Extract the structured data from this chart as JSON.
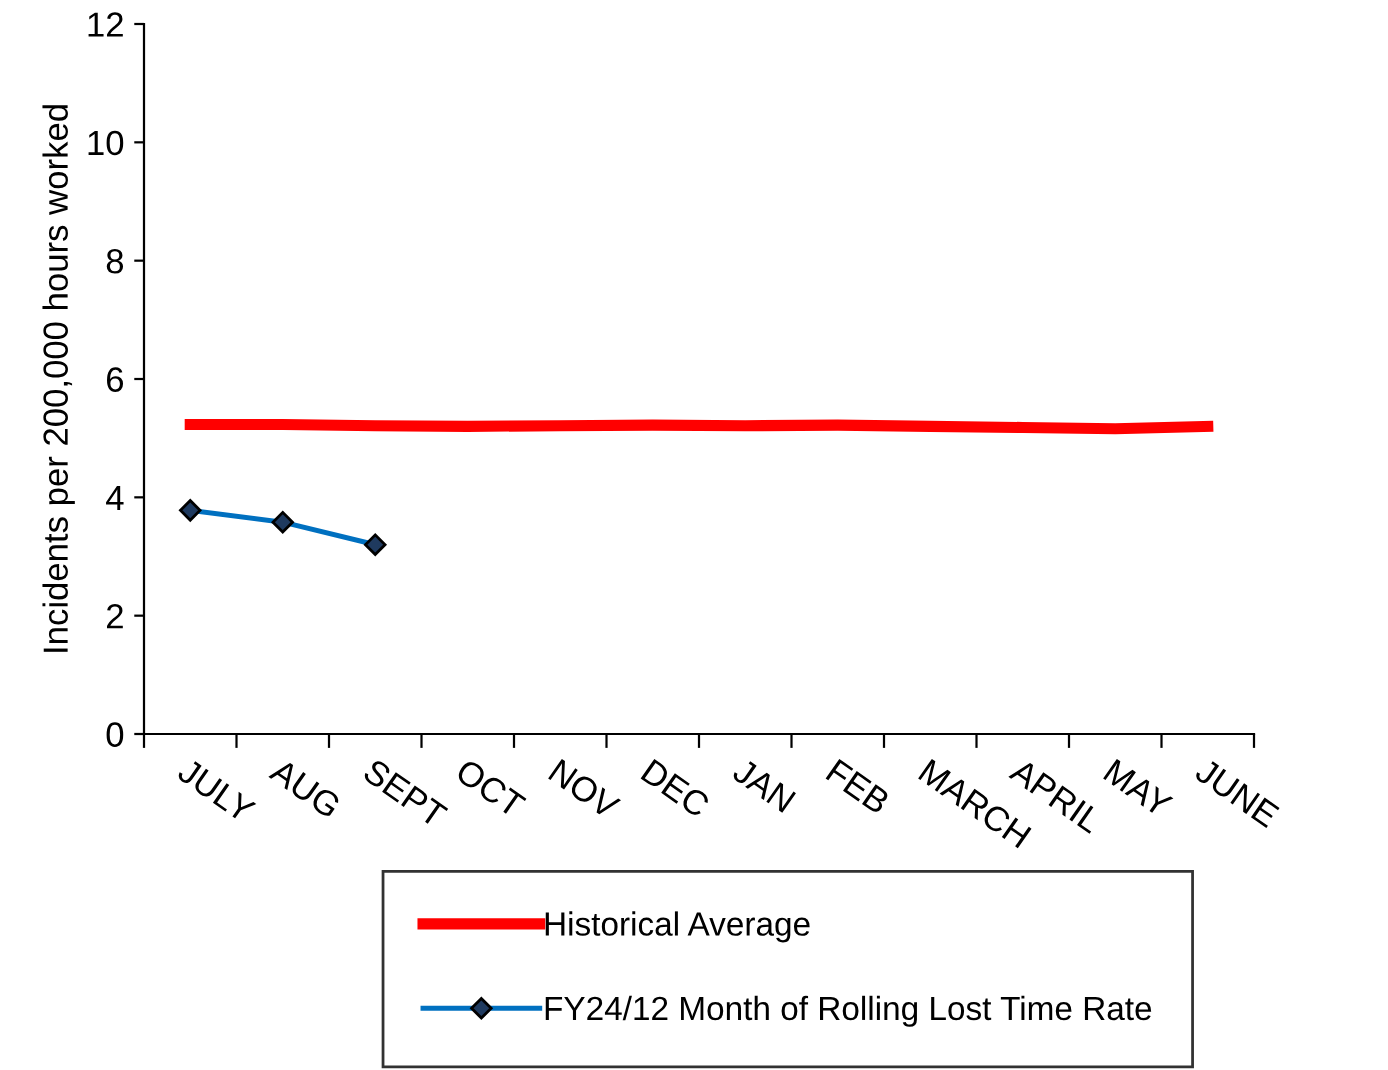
{
  "chart_data": {
    "type": "line",
    "ylabel": "Incidents per 200,000 hours worked",
    "categories": [
      "JULY",
      "AUG",
      "SEPT",
      "OCT",
      "NOV",
      "DEC",
      "JAN",
      "FEB",
      "MARCH",
      "APRIL",
      "MAY",
      "JUNE"
    ],
    "series": [
      {
        "name": "Historical Average",
        "color": "#ff0000",
        "marker": "none",
        "values": [
          5.23,
          5.23,
          5.21,
          5.2,
          5.21,
          5.22,
          5.21,
          5.22,
          5.2,
          5.18,
          5.16,
          5.2
        ]
      },
      {
        "name": "FY24/12 Month of Rolling Lost Time Rate",
        "color": "#0070c0",
        "marker": "diamond",
        "values": [
          3.78,
          3.58,
          3.2,
          null,
          null,
          null,
          null,
          null,
          null,
          null,
          null,
          null
        ]
      }
    ],
    "ylim": [
      0,
      12
    ],
    "yticks": [
      0,
      2,
      4,
      6,
      8,
      10,
      12
    ],
    "grid": false,
    "legend": "bottom"
  }
}
